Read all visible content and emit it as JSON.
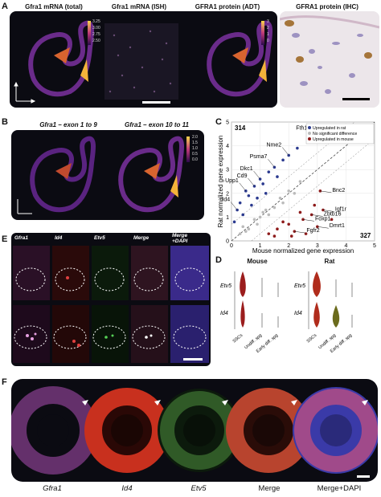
{
  "panelA": {
    "label": "A",
    "titles": [
      "Gfra1 mRNA (total)",
      "Gfra1 mRNA (ISH)",
      "GFRA1 protein (ADT)",
      "GFRA1 protein (IHC)"
    ],
    "colorbar1_ticks": [
      "3.25",
      "3.00",
      "2.75",
      "2.50"
    ],
    "colorbar2_ticks": [
      "3",
      "2",
      "1",
      "0"
    ]
  },
  "panelB": {
    "label": "B",
    "titles": [
      "Gfra1 – exon 1 to 9",
      "Gfra1 – exon 10 to 11"
    ],
    "colorbar_ticks": [
      "2.0",
      "1.5",
      "1.0",
      "0.5",
      "0.0"
    ]
  },
  "panelC": {
    "label": "C",
    "xlabel": "Mouse normalized gene expression",
    "ylabel": "Rat normalized gene expression",
    "count_top": "314",
    "count_bottom": "327",
    "legend": [
      "Upregulated in rat",
      "No significant difference",
      "Upregulated in mouse"
    ],
    "genes_rat": [
      "Fth1",
      "Nme2",
      "Psma7",
      "Upp1",
      "Cd9",
      "Dkc1",
      "Id4"
    ],
    "genes_mouse": [
      "Bnc2",
      "Foxp1",
      "Igf1r",
      "Zbtb16",
      "Dmrt1",
      "Fgfr2"
    ]
  },
  "chart_data": {
    "type": "scatter",
    "title": "",
    "xlabel": "Mouse normalized gene expression",
    "ylabel": "Rat normalized gene expression",
    "xlim": [
      0,
      5
    ],
    "ylim": [
      0,
      5
    ],
    "x_ticks": [
      "0",
      "1",
      "2",
      "3",
      "4",
      "5"
    ],
    "y_ticks": [
      "0",
      "1",
      "2",
      "3",
      "4",
      "5"
    ],
    "legend_position": "top-right",
    "series": [
      {
        "name": "Upregulated in rat",
        "color": "#2b3a8f",
        "points": [
          [
            0.2,
            1.3
          ],
          [
            0.3,
            1.6
          ],
          [
            0.5,
            2.1
          ],
          [
            0.6,
            1.9
          ],
          [
            0.8,
            2.3
          ],
          [
            0.4,
            1.1
          ],
          [
            1.0,
            2.6
          ],
          [
            1.1,
            2.4
          ],
          [
            1.3,
            2.9
          ],
          [
            1.5,
            3.1
          ],
          [
            0.7,
            1.5
          ],
          [
            1.8,
            3.4
          ],
          [
            2.0,
            3.6
          ],
          [
            2.3,
            3.9
          ],
          [
            2.9,
            4.3
          ],
          [
            3.3,
            4.6
          ],
          [
            0.1,
            0.8
          ],
          [
            0.9,
            1.8
          ],
          [
            1.2,
            2.0
          ],
          [
            1.6,
            2.7
          ]
        ]
      },
      {
        "name": "No significant difference",
        "color": "#bbbbbb",
        "points": [
          [
            0.3,
            0.3
          ],
          [
            0.6,
            0.5
          ],
          [
            0.8,
            0.9
          ],
          [
            1.0,
            1.0
          ],
          [
            1.2,
            1.3
          ],
          [
            1.5,
            1.4
          ],
          [
            1.7,
            1.8
          ],
          [
            2.0,
            2.1
          ],
          [
            2.2,
            2.0
          ],
          [
            0.4,
            0.6
          ],
          [
            0.9,
            0.7
          ],
          [
            1.3,
            1.1
          ],
          [
            1.8,
            1.6
          ],
          [
            2.4,
            2.5
          ],
          [
            0.5,
            0.4
          ],
          [
            1.1,
            1.2
          ]
        ]
      },
      {
        "name": "Upregulated in mouse",
        "color": "#8e1b1b",
        "points": [
          [
            1.3,
            0.3
          ],
          [
            1.6,
            0.5
          ],
          [
            2.0,
            0.7
          ],
          [
            2.2,
            0.4
          ],
          [
            2.5,
            0.9
          ],
          [
            2.8,
            1.1
          ],
          [
            3.0,
            0.6
          ],
          [
            2.1,
            0.2
          ],
          [
            1.8,
            0.8
          ],
          [
            2.6,
            0.3
          ],
          [
            3.2,
            1.3
          ],
          [
            3.5,
            0.9
          ],
          [
            1.5,
            0.2
          ],
          [
            2.4,
            1.2
          ],
          [
            2.9,
            1.5
          ],
          [
            3.1,
            2.1
          ]
        ]
      }
    ],
    "annotations": [
      {
        "text": "Fth1",
        "x": 2.9,
        "y": 4.3
      },
      {
        "text": "Nme2",
        "x": 2.0,
        "y": 3.6
      },
      {
        "text": "Psma7",
        "x": 1.5,
        "y": 3.1
      },
      {
        "text": "Upp1",
        "x": 0.5,
        "y": 2.1
      },
      {
        "text": "Cd9",
        "x": 0.8,
        "y": 2.3
      },
      {
        "text": "Dkc1",
        "x": 1.0,
        "y": 2.6
      },
      {
        "text": "Id4",
        "x": 0.2,
        "y": 1.3
      },
      {
        "text": "Bnc2",
        "x": 3.1,
        "y": 2.1
      },
      {
        "text": "Foxp1",
        "x": 2.5,
        "y": 0.9
      },
      {
        "text": "Igf1r",
        "x": 3.2,
        "y": 1.3
      },
      {
        "text": "Zbtb16",
        "x": 2.8,
        "y": 1.1
      },
      {
        "text": "Dmrt1",
        "x": 3.0,
        "y": 0.6
      },
      {
        "text": "Fgfr2",
        "x": 2.2,
        "y": 0.4
      }
    ]
  },
  "panelD": {
    "label": "D",
    "titles": [
      "Mouse",
      "Rat"
    ],
    "genes": [
      "Etv5",
      "Id4"
    ],
    "groups": [
      "SSCs",
      "Undiff. spg",
      "Early diff. spg"
    ]
  },
  "panelE": {
    "label": "E",
    "columns": [
      "Gfra1",
      "Id4",
      "Etv5",
      "Merge",
      "Merge\n+DAPI"
    ]
  },
  "panelF": {
    "label": "F",
    "captions": [
      "Gfra1",
      "Id4",
      "Etv5",
      "Merge",
      "Merge+DAPI"
    ]
  }
}
